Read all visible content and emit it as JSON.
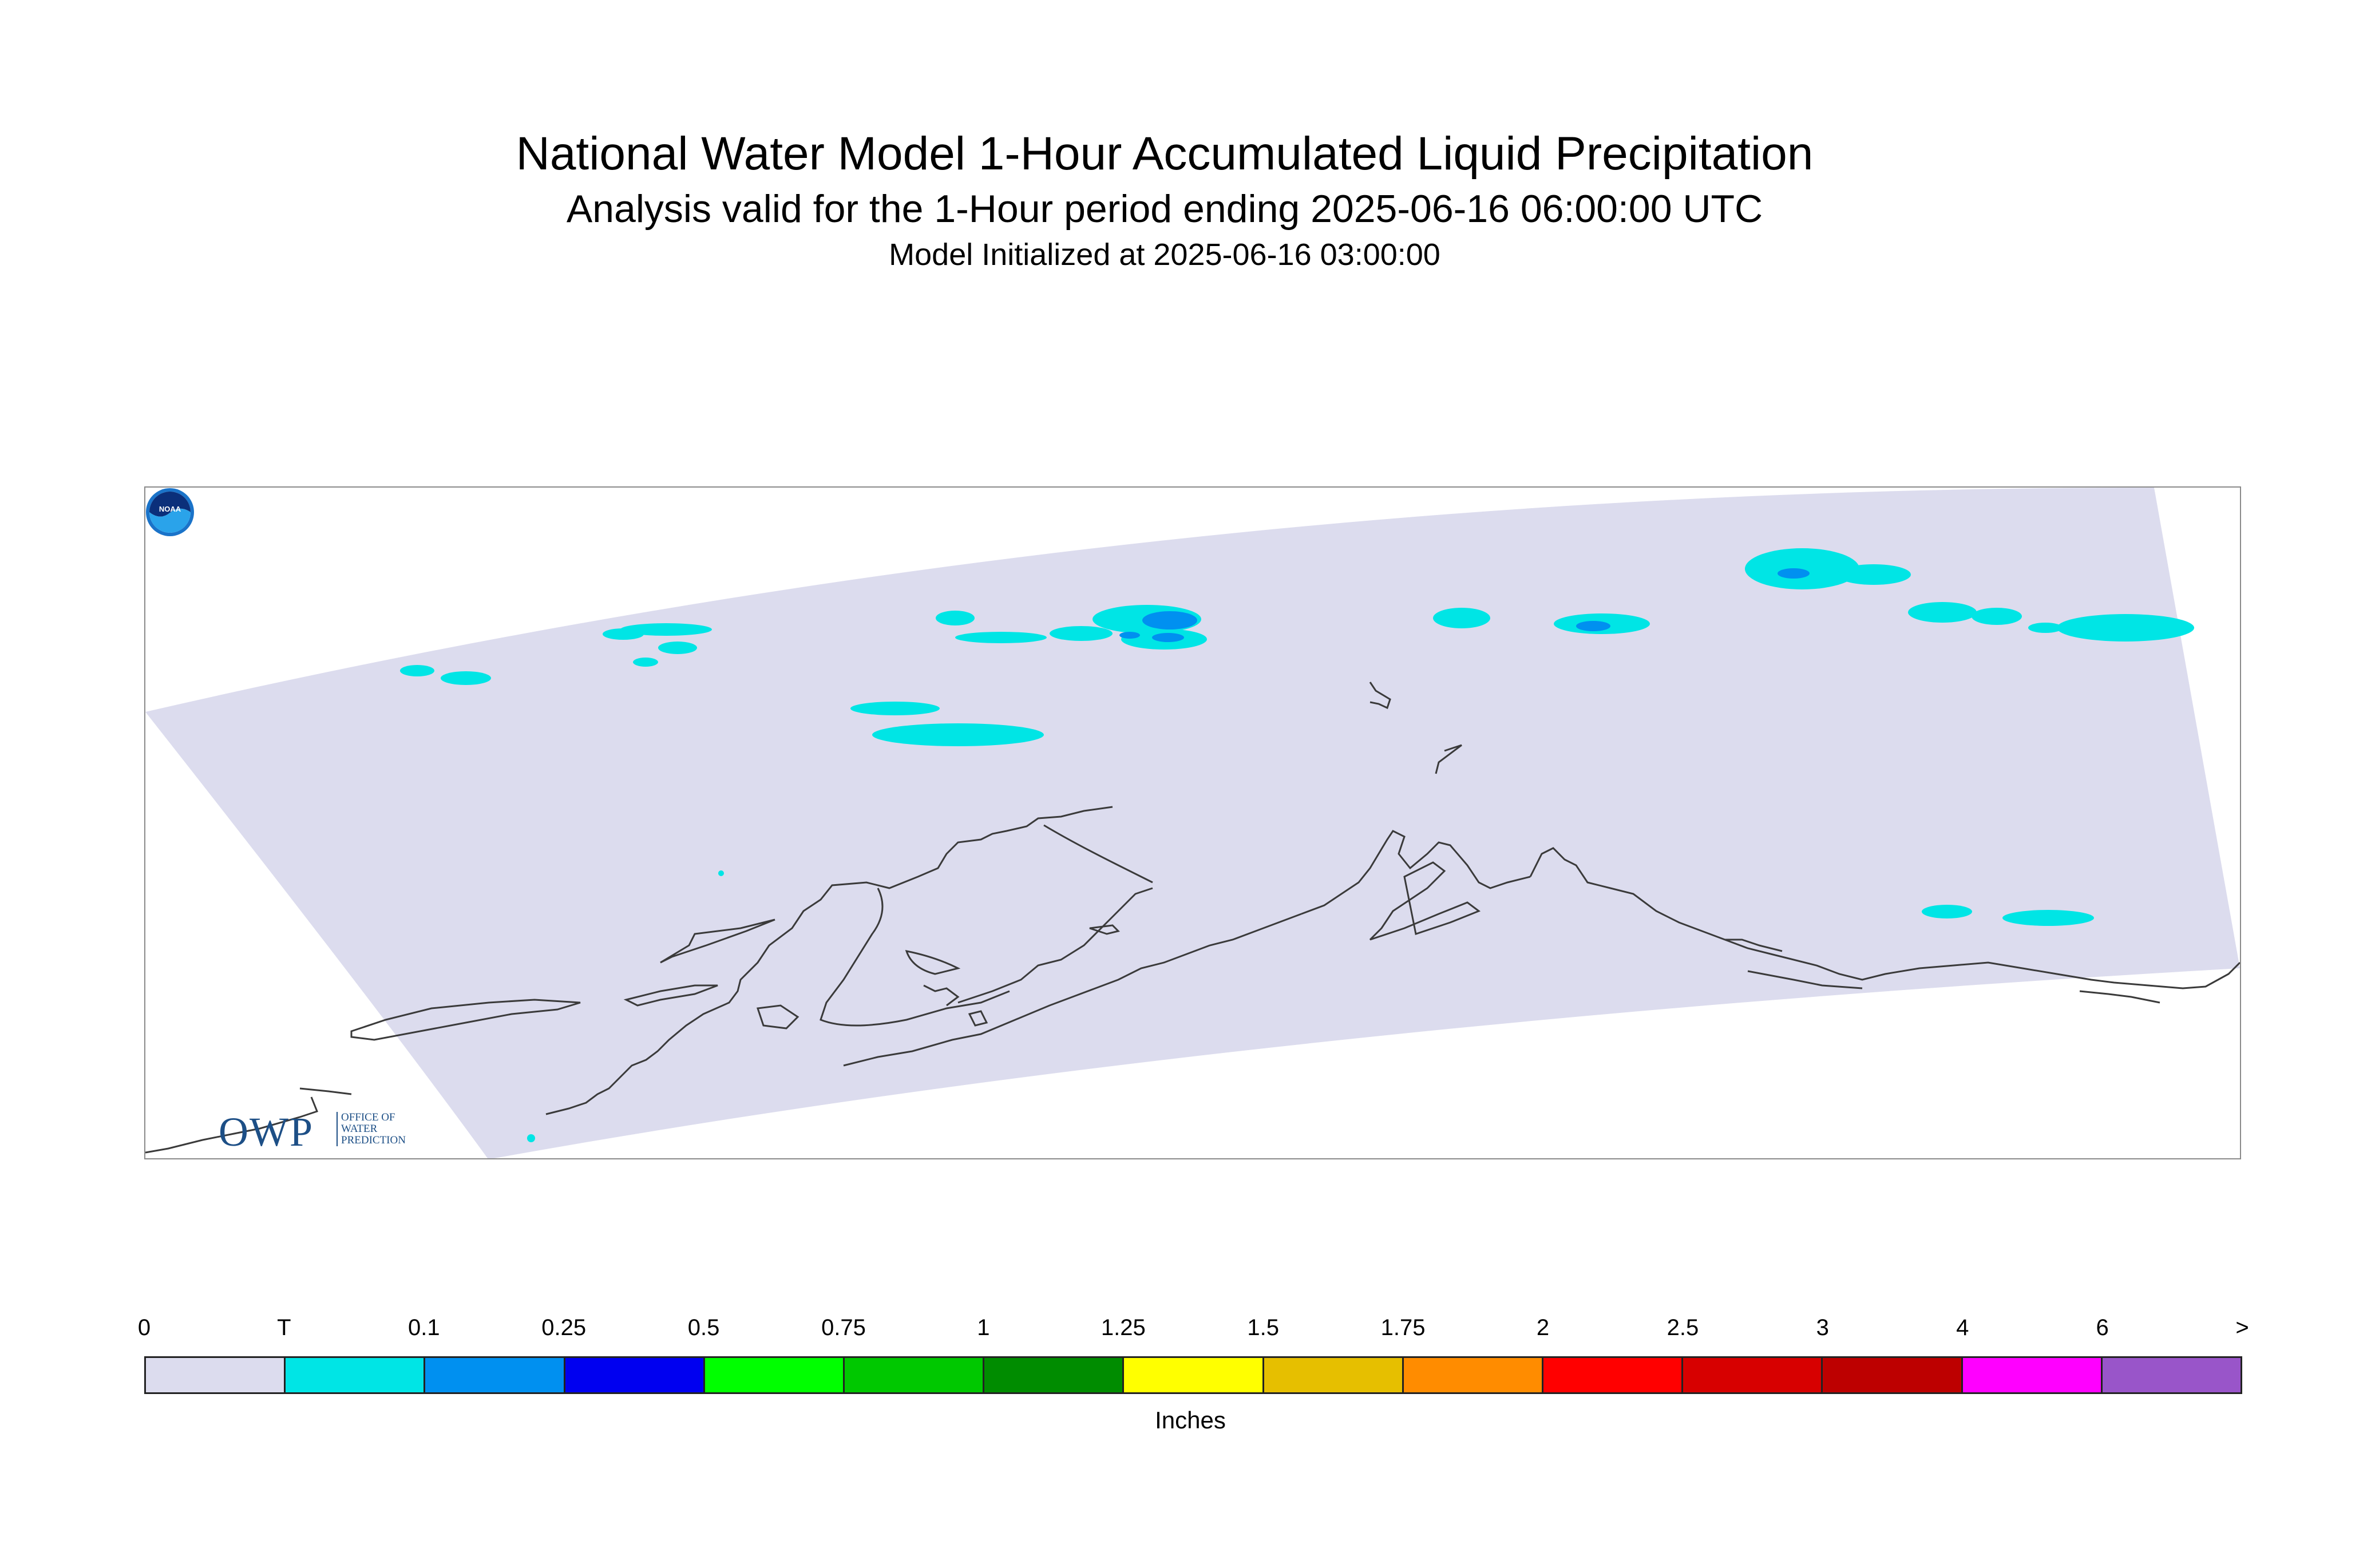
{
  "header": {
    "title": "National Water Model 1-Hour Accumulated Liquid Precipitation",
    "subtitle": "Analysis valid for the 1-Hour period ending 2025-06-16 06:00:00 UTC",
    "init_line": "Model Initialized at 2025-06-16 03:00:00"
  },
  "map": {
    "region": "Alaska",
    "background_color": "#dcdcee",
    "coastline_color": "#3a3a3a",
    "precip_colors": {
      "trace": "#00e5e5",
      "light": "#0090f0"
    }
  },
  "logos": {
    "owp": {
      "mark": "OWP",
      "lines": "OFFICE OF\nWATER\nPREDICTION"
    },
    "noaa": {
      "mark": "NOAA"
    }
  },
  "legend": {
    "ticks": [
      "0",
      "T",
      "0.1",
      "0.25",
      "0.5",
      "0.75",
      "1",
      "1.25",
      "1.5",
      "1.75",
      "2",
      "2.5",
      "3",
      "4",
      "6",
      ">"
    ],
    "colors": [
      "#dcdcee",
      "#00e5e5",
      "#0090f0",
      "#0000f0",
      "#00ff00",
      "#00c800",
      "#008c00",
      "#ffff00",
      "#e6bf00",
      "#ff8c00",
      "#ff0000",
      "#d70000",
      "#bd0000",
      "#ff00ff",
      "#9955c9"
    ],
    "units": "Inches"
  }
}
